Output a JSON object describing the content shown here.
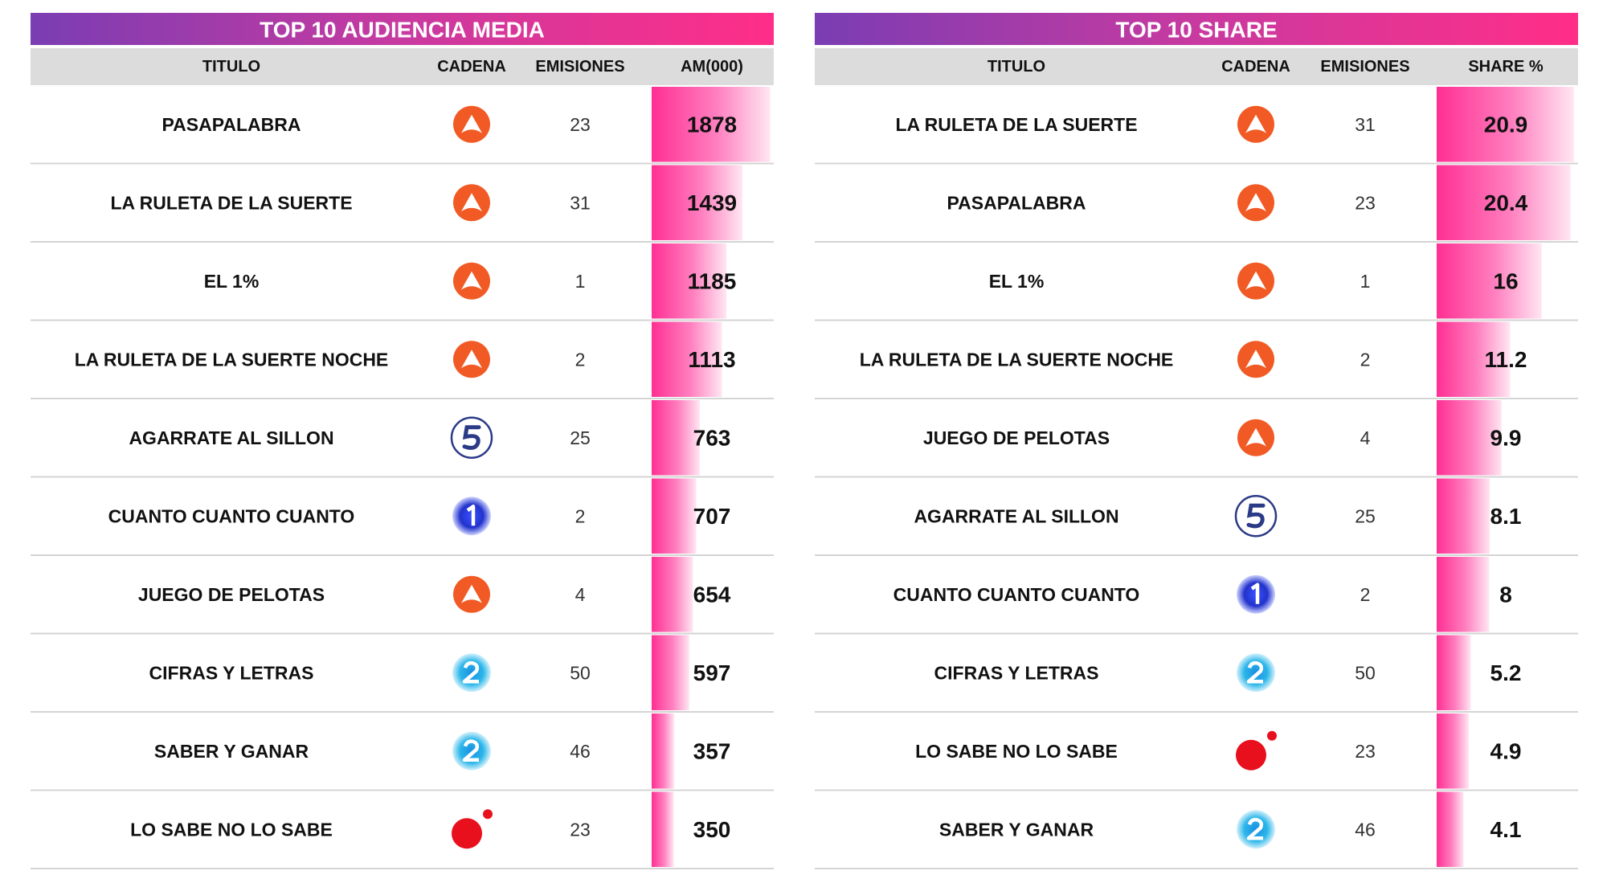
{
  "tables": [
    {
      "title": "TOP 10 AUDIENCIA MEDIA",
      "headers": [
        "TITULO",
        "CADENA",
        "EMISIONES",
        "AM(000)"
      ],
      "rows": [
        {
          "titulo": "PASAPALABRA",
          "emisiones": 23,
          "value": 1878
        },
        {
          "titulo": "LA RULETA DE LA SUERTE",
          "emisiones": 31,
          "value": 1439
        },
        {
          "titulo": "EL 1%",
          "emisiones": 1,
          "value": 1185
        },
        {
          "titulo": "LA RULETA DE LA SUERTE NOCHE",
          "emisiones": 2,
          "value": 1113
        },
        {
          "titulo": "AGARRATE AL SILLON",
          "emisiones": 25,
          "value": 763
        },
        {
          "titulo": "CUANTO CUANTO CUANTO",
          "emisiones": 2,
          "value": 707
        },
        {
          "titulo": "JUEGO DE PELOTAS",
          "emisiones": 4,
          "value": 654
        },
        {
          "titulo": "CIFRAS Y LETRAS",
          "emisiones": 50,
          "value": 597
        },
        {
          "titulo": "SABER Y GANAR",
          "emisiones": 46,
          "value": 357
        },
        {
          "titulo": "LO SABE NO LO SABE",
          "emisiones": 23,
          "value": 350
        }
      ]
    },
    {
      "title": "TOP 10 SHARE",
      "headers": [
        "TITULO",
        "CADENA",
        "EMISIONES",
        "SHARE %"
      ],
      "rows": [
        {
          "titulo": "LA RULETA DE LA SUERTE",
          "emisiones": 31,
          "value": 20.9
        },
        {
          "titulo": "PASAPALABRA",
          "emisiones": 23,
          "value": 20.4
        },
        {
          "titulo": "EL 1%",
          "emisiones": 1,
          "value": 16
        },
        {
          "titulo": "LA RULETA DE LA SUERTE NOCHE",
          "emisiones": 2,
          "value": 11.2
        },
        {
          "titulo": "JUEGO DE PELOTAS",
          "emisiones": 4,
          "value": 9.9
        },
        {
          "titulo": "AGARRATE AL SILLON",
          "emisiones": 25,
          "value": 8.1
        },
        {
          "titulo": "CUANTO CUANTO CUANTO",
          "emisiones": 2,
          "value": 8
        },
        {
          "titulo": "CIFRAS Y LETRAS",
          "emisiones": 50,
          "value": 5.2
        },
        {
          "titulo": "LO SABE NO LO SABE",
          "emisiones": 23,
          "value": 4.9
        },
        {
          "titulo": "SABER Y GANAR",
          "emisiones": 46,
          "value": 4.1
        }
      ]
    }
  ]
}
